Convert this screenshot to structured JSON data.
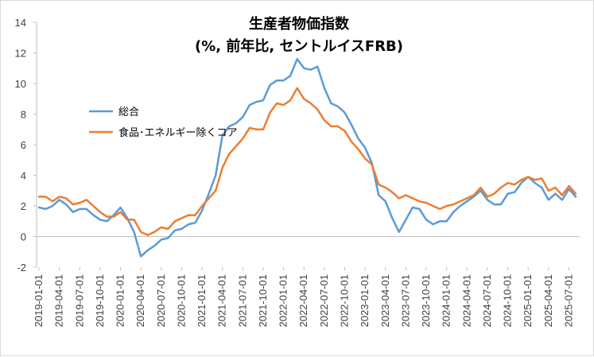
{
  "chart_data": {
    "type": "line",
    "title": "生産者物価指数",
    "subtitle": "(%, 前年比, セントルイスFRB)",
    "ylim": [
      -2,
      14
    ],
    "yticks": [
      -2,
      0,
      2,
      4,
      6,
      8,
      10,
      12,
      14
    ],
    "grid": false,
    "legend_position": "left-middle",
    "x_tick_labels": [
      "2019-01-01",
      "2019-04-01",
      "2019-07-01",
      "2019-10-01",
      "2020-01-01",
      "2020-04-01",
      "2020-07-01",
      "2020-10-01",
      "2021-01-01",
      "2021-04-01",
      "2021-07-01",
      "2021-10-01",
      "2022-01-01",
      "2022-04-01",
      "2022-07-01",
      "2022-10-01",
      "2023-01-01",
      "2023-04-01",
      "2023-07-01",
      "2023-10-01",
      "2024-01-01",
      "2024-04-01",
      "2024-07-01",
      "2024-10-01",
      "2025-01-01",
      "2025-04-01",
      "2025-07-01"
    ],
    "x_start": "2019-01-01",
    "x_end": "2025-08-01",
    "series": [
      {
        "name": "総合",
        "color": "#5b9bd5",
        "values": [
          1.9,
          1.8,
          2.0,
          2.4,
          2.1,
          1.6,
          1.8,
          1.8,
          1.4,
          1.1,
          1.0,
          1.4,
          1.9,
          1.2,
          0.3,
          -1.3,
          -0.9,
          -0.6,
          -0.2,
          -0.1,
          0.4,
          0.5,
          0.8,
          0.9,
          1.7,
          2.8,
          4.0,
          6.6,
          7.2,
          7.4,
          7.8,
          8.6,
          8.8,
          8.9,
          9.9,
          10.2,
          10.2,
          10.5,
          11.6,
          11.0,
          10.9,
          11.1,
          9.7,
          8.7,
          8.5,
          8.1,
          7.3,
          6.4,
          5.8,
          4.8,
          2.7,
          2.3,
          1.2,
          0.3,
          1.1,
          1.9,
          1.8,
          1.1,
          0.8,
          1.0,
          1.0,
          1.6,
          2.0,
          2.3,
          2.6,
          3.0,
          2.4,
          2.1,
          2.1,
          2.8,
          2.9,
          3.5,
          3.9,
          3.5,
          3.2,
          2.4,
          2.8,
          2.4,
          3.1,
          2.6
        ]
      },
      {
        "name": "食品･エネルギー除くコア",
        "color": "#ed7d31",
        "values": [
          2.6,
          2.6,
          2.3,
          2.6,
          2.5,
          2.1,
          2.2,
          2.4,
          2.0,
          1.6,
          1.3,
          1.3,
          1.6,
          1.1,
          1.1,
          0.3,
          0.1,
          0.3,
          0.6,
          0.5,
          1.0,
          1.2,
          1.4,
          1.4,
          2.0,
          2.5,
          3.0,
          4.5,
          5.4,
          5.9,
          6.4,
          7.1,
          7.0,
          7.0,
          8.1,
          8.7,
          8.6,
          8.9,
          9.7,
          9.0,
          8.7,
          8.3,
          7.6,
          7.2,
          7.2,
          6.9,
          6.2,
          5.7,
          5.1,
          4.7,
          3.4,
          3.2,
          2.9,
          2.5,
          2.7,
          2.5,
          2.3,
          2.2,
          2.0,
          1.8,
          2.0,
          2.1,
          2.3,
          2.5,
          2.7,
          3.2,
          2.6,
          2.8,
          3.2,
          3.5,
          3.4,
          3.7,
          3.9,
          3.7,
          3.8,
          3.0,
          3.2,
          2.7,
          3.3,
          2.8
        ]
      }
    ]
  }
}
